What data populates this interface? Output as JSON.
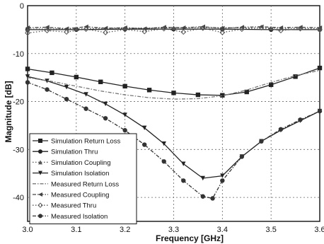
{
  "chart_data": {
    "type": "line",
    "xlabel": "Frequency [GHz]",
    "ylabel": "Magnitude [dB]",
    "xlim": [
      3.0,
      3.6
    ],
    "ylim": [
      -45,
      0
    ],
    "x_ticks": [
      "3.0",
      "3.1",
      "3.2",
      "3.3",
      "3.4",
      "3.5",
      "3.6"
    ],
    "y_ticks": [
      "0",
      "-10",
      "-20",
      "-30",
      "-40"
    ],
    "grid": true,
    "legend_position": "bottom-left",
    "series": [
      {
        "name": "Simulation Return Loss",
        "marker": "square",
        "color": "#222222",
        "dash": "solid",
        "x": [
          3.0,
          3.05,
          3.1,
          3.15,
          3.2,
          3.25,
          3.3,
          3.35,
          3.4,
          3.45,
          3.5,
          3.55,
          3.6
        ],
        "y": [
          -13.2,
          -14.0,
          -14.9,
          -15.9,
          -16.8,
          -17.6,
          -18.2,
          -18.6,
          -18.7,
          -18.0,
          -16.5,
          -14.8,
          -13.0
        ]
      },
      {
        "name": "Simulation Thru",
        "marker": "circle",
        "color": "#222222",
        "dash": "solid",
        "x": [
          3.0,
          3.1,
          3.2,
          3.3,
          3.4,
          3.5,
          3.6
        ],
        "y": [
          -5.0,
          -5.0,
          -4.9,
          -4.9,
          -4.9,
          -5.0,
          -5.0
        ]
      },
      {
        "name": "Simulation Coupling",
        "marker": "triangle-up",
        "color": "#555555",
        "dash": "dot",
        "x": [
          3.0,
          3.1,
          3.2,
          3.3,
          3.4,
          3.5,
          3.6
        ],
        "y": [
          -4.9,
          -4.8,
          -4.7,
          -4.6,
          -4.6,
          -4.7,
          -4.8
        ]
      },
      {
        "name": "Simulation Isolation",
        "marker": "triangle-down",
        "color": "#222222",
        "dash": "solid",
        "x": [
          3.0,
          3.04,
          3.08,
          3.12,
          3.16,
          3.2,
          3.24,
          3.28,
          3.32,
          3.36,
          3.4,
          3.44,
          3.48,
          3.52,
          3.56,
          3.6
        ],
        "y": [
          -14.8,
          -15.7,
          -17.0,
          -18.5,
          -20.5,
          -22.8,
          -25.5,
          -28.8,
          -33.0,
          -36.0,
          -35.5,
          -31.5,
          -28.3,
          -26.0,
          -24.0,
          -22.0
        ]
      },
      {
        "name": "Measured Return Loss",
        "marker": "none",
        "color": "#777777",
        "dash": "dashdot",
        "x": [
          3.0,
          3.05,
          3.1,
          3.15,
          3.2,
          3.25,
          3.3,
          3.35,
          3.4,
          3.45,
          3.5,
          3.55,
          3.6
        ],
        "y": [
          -15.0,
          -15.8,
          -16.8,
          -17.8,
          -18.6,
          -19.2,
          -19.5,
          -19.4,
          -18.8,
          -17.6,
          -16.0,
          -14.6,
          -13.5
        ]
      },
      {
        "name": "Measured Coupling",
        "marker": "triangle-left",
        "color": "#444444",
        "dash": "dashdot",
        "x": [
          3.0,
          3.04,
          3.08,
          3.12,
          3.16,
          3.2,
          3.24,
          3.28,
          3.32,
          3.36,
          3.4,
          3.44,
          3.48,
          3.52,
          3.56,
          3.6
        ],
        "y": [
          -4.6,
          -4.5,
          -4.8,
          -4.4,
          -4.7,
          -4.6,
          -4.8,
          -4.5,
          -4.6,
          -4.4,
          -4.7,
          -4.5,
          -4.4,
          -4.6,
          -4.5,
          -4.6
        ]
      },
      {
        "name": "Measured Thru",
        "marker": "diamond",
        "color": "#555555",
        "dash": "dot",
        "x": [
          3.0,
          3.04,
          3.08,
          3.12,
          3.16,
          3.2,
          3.24,
          3.28,
          3.32,
          3.36,
          3.4,
          3.44,
          3.48,
          3.52,
          3.56,
          3.6
        ],
        "y": [
          -5.7,
          -5.2,
          -5.5,
          -4.9,
          -5.6,
          -5.0,
          -5.4,
          -4.8,
          -5.5,
          -4.7,
          -5.6,
          -4.9,
          -4.6,
          -5.2,
          -4.8,
          -5.0
        ]
      },
      {
        "name": "Measured Isolation",
        "marker": "circle",
        "color": "#333333",
        "dash": "dashdot",
        "x": [
          3.0,
          3.04,
          3.08,
          3.12,
          3.16,
          3.2,
          3.24,
          3.28,
          3.32,
          3.36,
          3.38,
          3.4,
          3.44,
          3.48,
          3.52,
          3.56,
          3.6
        ],
        "y": [
          -16.0,
          -17.5,
          -19.5,
          -21.5,
          -23.5,
          -26.0,
          -29.0,
          -32.5,
          -36.5,
          -39.8,
          -40.2,
          -36.5,
          -31.5,
          -28.3,
          -25.8,
          -23.8,
          -22.0
        ]
      }
    ]
  }
}
